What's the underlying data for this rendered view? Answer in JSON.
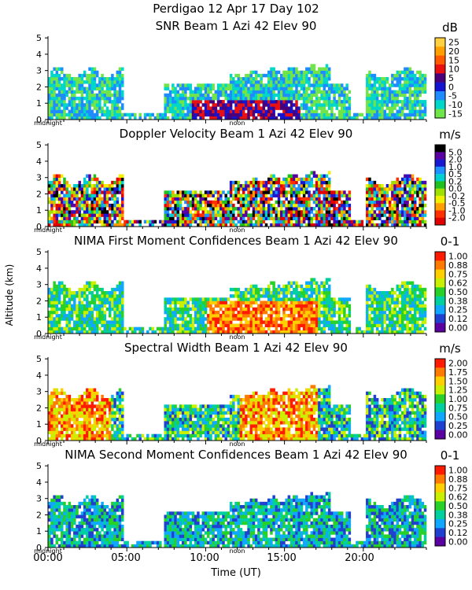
{
  "header": {
    "line1": "Perdigao   12 Apr 17 Day 102",
    "line2": "SNR Beam 1 Azi  42 Elev 90"
  },
  "axes": {
    "ylabel": "Altitude (km)",
    "xlabel": "Time (UT)",
    "xticks": [
      "00:00",
      "05:00",
      "10:00",
      "15:00",
      "20:00"
    ],
    "xlim_hours": [
      0,
      24
    ],
    "ylim_km": [
      0,
      5.2
    ],
    "yticks": [
      "0",
      "1",
      "2",
      "3",
      "4",
      "5"
    ],
    "marker_left": "midnight",
    "marker_mid": "noon"
  },
  "chart_data": [
    {
      "type": "heatmap",
      "title": "",
      "unit": "dB",
      "colorbar": {
        "labels": [
          "25",
          "20",
          "15",
          "10",
          "5",
          "0",
          "-5",
          "-10",
          "-15"
        ],
        "colors": [
          "#ffd040",
          "#ffa000",
          "#ff5a00",
          "#e81010",
          "#4a0078",
          "#1414d0",
          "#1e8cff",
          "#00d7c8",
          "#6fe54a"
        ]
      }
    },
    {
      "type": "heatmap",
      "title": "Doppler Velocity Beam 1 Azi  42 Elev 90",
      "unit": "m/s",
      "colorbar": {
        "labels": [
          "5.0",
          "2.0",
          "1.0",
          "0.5",
          "0.2",
          "0.0",
          "-0.2",
          "-0.5",
          "-1.0",
          "-2.0"
        ],
        "colors": [
          "#000000",
          "#5a00a0",
          "#1818d0",
          "#1e90ff",
          "#00d0d0",
          "#20c020",
          "#a0e000",
          "#f0f000",
          "#ffa000",
          "#ff3000",
          "#e00000"
        ]
      }
    },
    {
      "type": "heatmap",
      "title": "NIMA First Moment Confidences Beam 1 Azi  42 Elev 90",
      "unit": "0-1",
      "colorbar": {
        "labels": [
          "1.00",
          "0.88",
          "0.75",
          "0.62",
          "0.50",
          "0.38",
          "0.25",
          "0.12",
          "0.00"
        ],
        "colors": [
          "#ff1a00",
          "#ff7a00",
          "#ffd000",
          "#c8f000",
          "#28d028",
          "#00d0a0",
          "#10a8ff",
          "#2040d0",
          "#5a00a0"
        ]
      }
    },
    {
      "type": "heatmap",
      "title": "Spectral Width Beam 1 Azi  42 Elev 90",
      "unit": "m/s",
      "colorbar": {
        "labels": [
          "2.00",
          "1.75",
          "1.50",
          "1.25",
          "1.00",
          "0.75",
          "0.50",
          "0.25",
          "0.00"
        ],
        "colors": [
          "#ff1a00",
          "#ff7a00",
          "#ffd000",
          "#c8f000",
          "#28d028",
          "#00d0a0",
          "#10a8ff",
          "#2040d0",
          "#5a00a0"
        ]
      }
    },
    {
      "type": "heatmap",
      "title": "NIMA Second Moment Confidences Beam 1 Azi  42 Elev 90",
      "unit": "0-1",
      "colorbar": {
        "labels": [
          "1.00",
          "0.88",
          "0.75",
          "0.62",
          "0.50",
          "0.38",
          "0.25",
          "0.12",
          "0.00"
        ],
        "colors": [
          "#ff1a00",
          "#ff7a00",
          "#ffd000",
          "#c8f000",
          "#28d028",
          "#00d0a0",
          "#10a8ff",
          "#2040d0",
          "#5a00a0"
        ]
      }
    }
  ]
}
